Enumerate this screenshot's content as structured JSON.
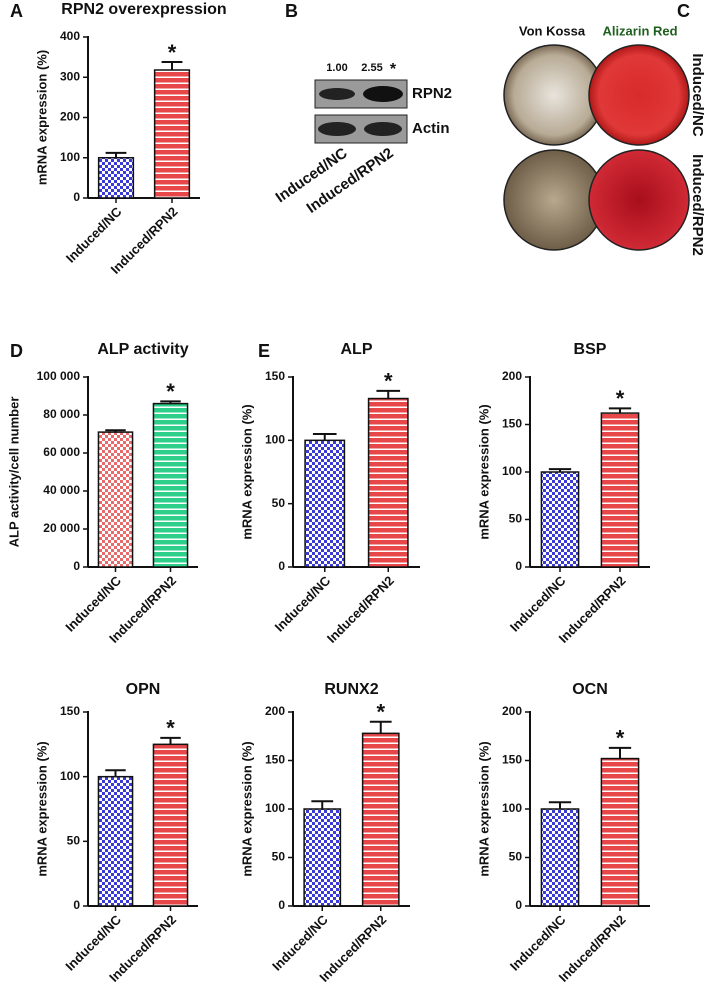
{
  "chart_data": [
    {
      "type": "bar",
      "panel": "A",
      "title": "RPN2 overexpression",
      "ylabel": "mRNA expression (%)",
      "categories": [
        "Induced/NC",
        "Induced/RPN2"
      ],
      "values": [
        100,
        318
      ],
      "errors": [
        12,
        20
      ],
      "significance": [
        null,
        "*"
      ],
      "colors": [
        "#3a3ad6",
        "#e8474a"
      ],
      "patterns": [
        "checker",
        "stripes"
      ],
      "ylim": [
        0,
        400
      ],
      "yticks": [
        0,
        100,
        200,
        300,
        400
      ]
    },
    {
      "type": "bar",
      "panel": "D",
      "title": "ALP activity",
      "ylabel": "ALP activity/cell number",
      "categories": [
        "Induced/NC",
        "Induced/RPN2"
      ],
      "values": [
        71000,
        86000
      ],
      "errors": [
        1000,
        1200
      ],
      "significance": [
        null,
        "*"
      ],
      "colors": [
        "#e86a6a",
        "#2ecf8a"
      ],
      "patterns": [
        "checker",
        "stripes"
      ],
      "ylim": [
        0,
        100000
      ],
      "yticks": [
        0,
        {
          "value": 20000,
          "label": "20 000"
        },
        {
          "value": 40000,
          "label": "40 000"
        },
        {
          "value": 60000,
          "label": "60 000"
        },
        {
          "value": 80000,
          "label": "80 000"
        },
        {
          "value": 100000,
          "label": "100 000"
        }
      ]
    },
    {
      "type": "bar",
      "panel": "E",
      "title": "ALP",
      "ylabel": "mRNA expression (%)",
      "categories": [
        "Induced/NC",
        "Induced/RPN2"
      ],
      "values": [
        100,
        133
      ],
      "errors": [
        5,
        6
      ],
      "significance": [
        null,
        "*"
      ],
      "colors": [
        "#3a3ad6",
        "#e8474a"
      ],
      "patterns": [
        "checker",
        "stripes"
      ],
      "ylim": [
        0,
        150
      ],
      "yticks": [
        0,
        50,
        100,
        150
      ]
    },
    {
      "type": "bar",
      "title": "BSP",
      "ylabel": "mRNA expression (%)",
      "categories": [
        "Induced/NC",
        "Induced/RPN2"
      ],
      "values": [
        100,
        162
      ],
      "errors": [
        3,
        5
      ],
      "significance": [
        null,
        "*"
      ],
      "colors": [
        "#3a3ad6",
        "#e8474a"
      ],
      "patterns": [
        "checker",
        "stripes"
      ],
      "ylim": [
        0,
        200
      ],
      "yticks": [
        0,
        50,
        100,
        150,
        200
      ]
    },
    {
      "type": "bar",
      "title": "OPN",
      "ylabel": "mRNA expression (%)",
      "categories": [
        "Induced/NC",
        "Induced/RPN2"
      ],
      "values": [
        100,
        125
      ],
      "errors": [
        5,
        5
      ],
      "significance": [
        null,
        "*"
      ],
      "colors": [
        "#3a3ad6",
        "#e8474a"
      ],
      "patterns": [
        "checker",
        "stripes"
      ],
      "ylim": [
        0,
        150
      ],
      "yticks": [
        0,
        50,
        100,
        150
      ]
    },
    {
      "type": "bar",
      "title": "RUNX2",
      "ylabel": "mRNA expression (%)",
      "categories": [
        "Induced/NC",
        "Induced/RPN2"
      ],
      "values": [
        100,
        178
      ],
      "errors": [
        8,
        12
      ],
      "significance": [
        null,
        "*"
      ],
      "colors": [
        "#3a3ad6",
        "#e8474a"
      ],
      "patterns": [
        "checker",
        "stripes"
      ],
      "ylim": [
        0,
        200
      ],
      "yticks": [
        0,
        50,
        100,
        150,
        200
      ]
    },
    {
      "type": "bar",
      "title": "OCN",
      "ylabel": "mRNA expression (%)",
      "categories": [
        "Induced/NC",
        "Induced/RPN2"
      ],
      "values": [
        100,
        152
      ],
      "errors": [
        7,
        11
      ],
      "significance": [
        null,
        "*"
      ],
      "colors": [
        "#3a3ad6",
        "#e8474a"
      ],
      "patterns": [
        "checker",
        "stripes"
      ],
      "ylim": [
        0,
        200
      ],
      "yticks": [
        0,
        50,
        100,
        150,
        200
      ]
    }
  ],
  "blot": {
    "panel": "B",
    "ratios": [
      "1.00",
      "2.55"
    ],
    "significance": "*",
    "bands": [
      "RPN2",
      "Actin"
    ],
    "lanes": [
      "Induced/NC",
      "Induced/RPN2"
    ]
  },
  "stain": {
    "panel": "C",
    "columns": [
      "Von Kossa",
      "Alizarin Red"
    ],
    "rows": [
      "Induced/NC",
      "Induced/RPN2"
    ]
  }
}
